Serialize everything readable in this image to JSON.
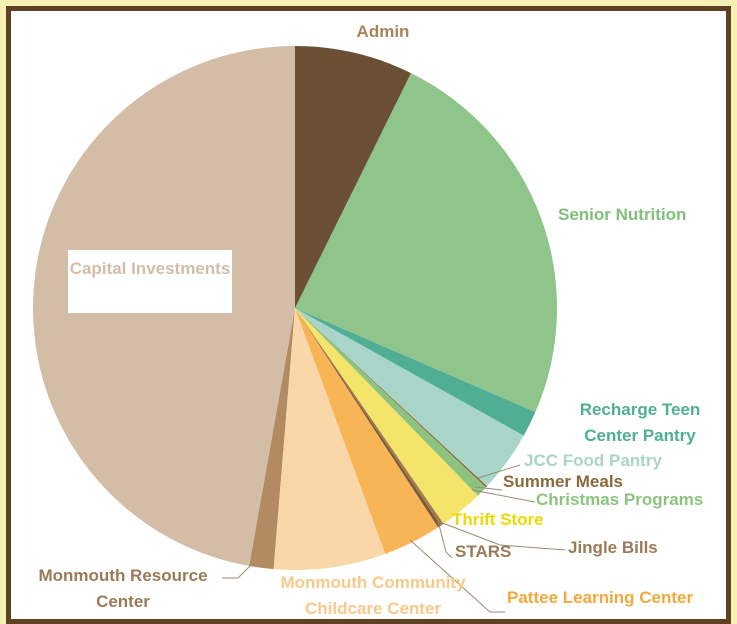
{
  "chart_data": {
    "type": "pie",
    "categories": [
      "Admin",
      "Senior Nutrition",
      "Recharge Teen Center Pantry",
      "JCC Food Pantry",
      "Summer Meals",
      "Christmas Programs",
      "Thrift Store",
      "Jingle Bills",
      "STARS",
      "Pattee Learning Center",
      "Monmouth Community Childcare Center",
      "Monmouth Resource Center",
      "Capital Investments"
    ],
    "values": [
      7.3,
      24.2,
      1.6,
      3.8,
      0.1,
      0.7,
      2.7,
      0.2,
      0.2,
      3.6,
      6.9,
      1.5,
      47.2
    ],
    "colors": [
      "#6b4f35",
      "#8fc48a",
      "#4fae94",
      "#a8d5c8",
      "#8a6a3b",
      "#8cc47f",
      "#f5e46a",
      "#a57a4e",
      "#7a5a3a",
      "#f7b556",
      "#fad7a8",
      "#b38b63",
      "#d4bda6"
    ],
    "label_colors": [
      "#a8845a",
      "#7fbf7a",
      "#4fae94",
      "#a8d5c8",
      "#8a6a3b",
      "#8cc47f",
      "#f0d800",
      "#9a7a58",
      "#9a7a58",
      "#f2a93a",
      "#f7c98a",
      "#9a7a58",
      "#d4bda6"
    ]
  }
}
